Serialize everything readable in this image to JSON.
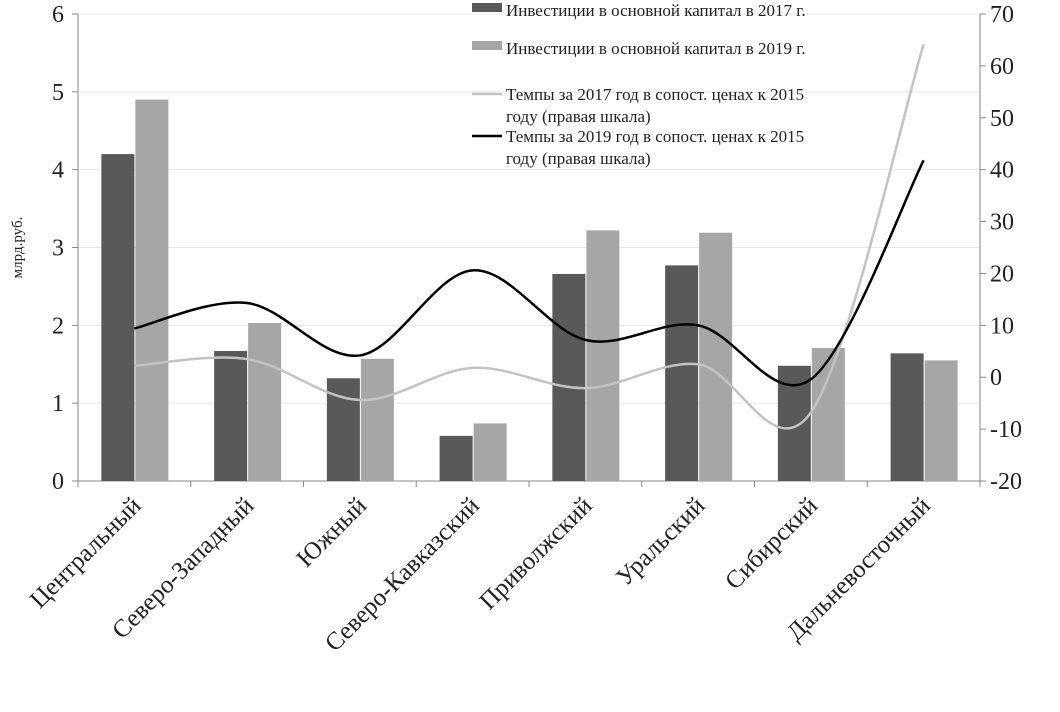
{
  "chart_data": {
    "type": "bar",
    "categories": [
      "Центральный",
      "Северо-Западный",
      "Южный",
      "Северо-Кавказский",
      "Приволжский",
      "Уральский",
      "Сибирский",
      "Дальневосточный"
    ],
    "ylabel": "млрд.руб.",
    "ylim": [
      0,
      6
    ],
    "yticks": [
      0,
      1,
      2,
      3,
      4,
      5,
      6
    ],
    "y2lim": [
      -20,
      70
    ],
    "y2ticks": [
      -20,
      -10,
      0,
      10,
      20,
      30,
      40,
      50,
      60,
      70
    ],
    "grid": true,
    "legend_position": "top-right",
    "series": [
      {
        "name": "Инвестиции в основной капитал в 2017 г.",
        "kind": "bar",
        "axis": "left",
        "color": "#595959",
        "values": [
          4.2,
          1.67,
          1.32,
          0.58,
          2.66,
          2.77,
          1.48,
          1.64
        ]
      },
      {
        "name": "Инвестиции в основной капитал в 2019 г.",
        "kind": "bar",
        "axis": "left",
        "color": "#a6a6a6",
        "values": [
          4.9,
          2.03,
          1.57,
          0.74,
          3.22,
          3.19,
          1.71,
          1.55
        ]
      },
      {
        "name": "Темпы за 2017 год в сопост. ценах к 2015 году (правая шкала)",
        "kind": "line",
        "axis": "right",
        "color": "#c3c3c3",
        "values": [
          2.2,
          3.5,
          -4.4,
          1.8,
          -2.1,
          2.5,
          -6.8,
          64.2
        ]
      },
      {
        "name": "Темпы за 2019 год в сопост. ценах к 2015 году (правая шкала)",
        "kind": "line",
        "axis": "right",
        "color": "#000000",
        "values": [
          9.4,
          14.3,
          4.2,
          20.6,
          7.2,
          10.0,
          -0.4,
          41.8
        ]
      }
    ]
  }
}
